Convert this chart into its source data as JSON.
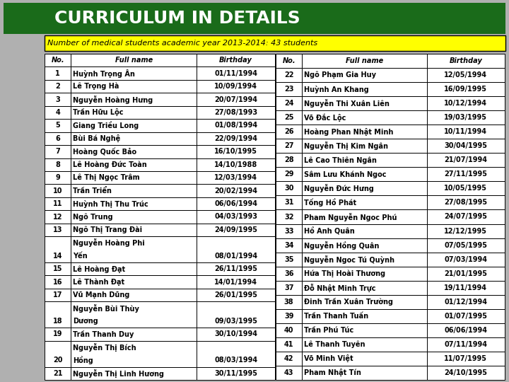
{
  "title": "CURRICULUM IN DETAILS",
  "subtitle": "Number of medical students academic year 2013-2014: 43 students",
  "header": [
    "No.",
    "Full name",
    "Birthday"
  ],
  "left_table": [
    [
      "1",
      "Huỳnh Trọng Ân",
      "01/11/1994"
    ],
    [
      "2",
      "Lê Trọng Hà",
      "10/09/1994"
    ],
    [
      "3",
      "Nguyễn Hoàng Hưng",
      "20/07/1994"
    ],
    [
      "4",
      "Trần Hữu Lộc",
      "27/08/1993"
    ],
    [
      "5",
      "Giang Triều Long",
      "01/08/1994"
    ],
    [
      "6",
      "Bùi Bá Nghệ",
      "22/09/1994"
    ],
    [
      "7",
      "Hoàng Quốc Bảo",
      "16/10/1995"
    ],
    [
      "8",
      "Lê Hoàng Đức Toàn",
      "14/10/1988"
    ],
    [
      "9",
      "Lê Thị Ngọc Trâm",
      "12/03/1994"
    ],
    [
      "10",
      "Trần Triển",
      "20/02/1994"
    ],
    [
      "11",
      "Huỳnh Thị Thu Trúc",
      "06/06/1994"
    ],
    [
      "12",
      "Ngô Trung",
      "04/03/1993"
    ],
    [
      "13",
      "Ngô Thị Trang Đài",
      "24/09/1995"
    ],
    [
      "14",
      "Nguyễn Hoàng Phi\nYến",
      "08/01/1994"
    ],
    [
      "15",
      "Lê Hoàng Đạt",
      "26/11/1995"
    ],
    [
      "16",
      "Lê Thành Đạt",
      "14/01/1994"
    ],
    [
      "17",
      "Vũ Mạnh Dũng",
      "26/01/1995"
    ],
    [
      "18",
      "Nguyễn Bùi Thùy\nDương",
      "09/03/1995"
    ],
    [
      "19",
      "Trần Thanh Duy",
      "30/10/1994"
    ],
    [
      "20",
      "Nguyễn Thị Bích\nHồng",
      "08/03/1994"
    ],
    [
      "21",
      "Nguyễn Thị Linh Hương",
      "30/11/1995"
    ]
  ],
  "right_table": [
    [
      "22",
      "Ngô Phạm Gia Huy",
      "12/05/1994"
    ],
    [
      "23",
      "Huỳnh An Khang",
      "16/09/1995"
    ],
    [
      "24",
      "Nguyễn Thi Xuân Liên",
      "10/12/1994"
    ],
    [
      "25",
      "Võ Đắc Lộc",
      "19/03/1995"
    ],
    [
      "26",
      "Hoàng Phan Nhật Minh",
      "10/11/1994"
    ],
    [
      "27",
      "Nguyễn Thị Kim Ngân",
      "30/04/1995"
    ],
    [
      "28",
      "Lê Cao Thiên Ngân",
      "21/07/1994"
    ],
    [
      "29",
      "Sâm Lưu Khánh Ngoc",
      "27/11/1995"
    ],
    [
      "30",
      "Nguyễn Đức Hưng",
      "10/05/1995"
    ],
    [
      "31",
      "Tống Hồ Phát",
      "27/08/1995"
    ],
    [
      "32",
      "Pham Nguyễn Ngoc Phú",
      "24/07/1995"
    ],
    [
      "33",
      "Hồ Anh Quân",
      "12/12/1995"
    ],
    [
      "34",
      "Nguyễn Hồng Quân",
      "07/05/1995"
    ],
    [
      "35",
      "Nguyễn Ngoc Tú Quỳnh",
      "07/03/1994"
    ],
    [
      "36",
      "Hứa Thị Hoài Thương",
      "21/01/1995"
    ],
    [
      "37",
      "Đỗ Nhật Minh Trực",
      "19/11/1994"
    ],
    [
      "38",
      "Đinh Trần Xuân Trường",
      "01/12/1994"
    ],
    [
      "39",
      "Trần Thanh Tuấn",
      "01/07/1995"
    ],
    [
      "40",
      "Trần Phú Túc",
      "06/06/1994"
    ],
    [
      "41",
      "Lê Thanh Tuyên",
      "07/11/1994"
    ],
    [
      "42",
      "Võ Minh Việt",
      "11/07/1995"
    ],
    [
      "43",
      "Pham Nhật Tín",
      "24/10/1995"
    ]
  ],
  "bg_color": "#b0b0b0",
  "header_bg": "#1a6b1a",
  "header_text_color": "#ffffff",
  "subtitle_bg": "#ffff00",
  "subtitle_text_color": "#000000",
  "table_border": "#000000",
  "text_color": "#000000",
  "fig_width": 7.2,
  "fig_height": 5.4,
  "dpi": 100
}
